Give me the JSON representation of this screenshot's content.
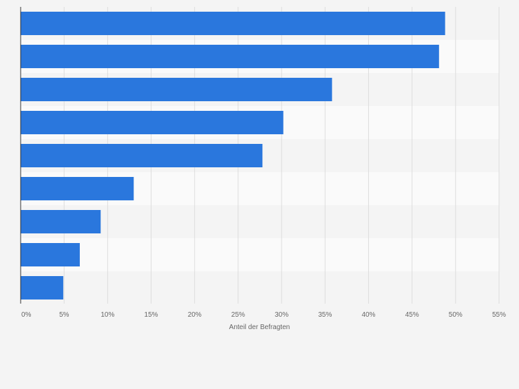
{
  "chart_data": {
    "type": "bar",
    "orientation": "horizontal",
    "categories": [
      "",
      "",
      "",
      "",
      "",
      "",
      "",
      "",
      ""
    ],
    "values": [
      48.8,
      48.1,
      35.8,
      30.2,
      27.8,
      13.0,
      9.2,
      6.8,
      4.9
    ],
    "xlabel": "Anteil der Befragten",
    "ylabel": "",
    "xlim": [
      0,
      55
    ],
    "x_ticks": [
      "0%",
      "5%",
      "10%",
      "15%",
      "20%",
      "25%",
      "30%",
      "35%",
      "40%",
      "45%",
      "50%",
      "55%"
    ],
    "grid": true,
    "bar_color": "#2a77dd",
    "band_colors": [
      "#f4f4f4",
      "#fafafa"
    ]
  }
}
